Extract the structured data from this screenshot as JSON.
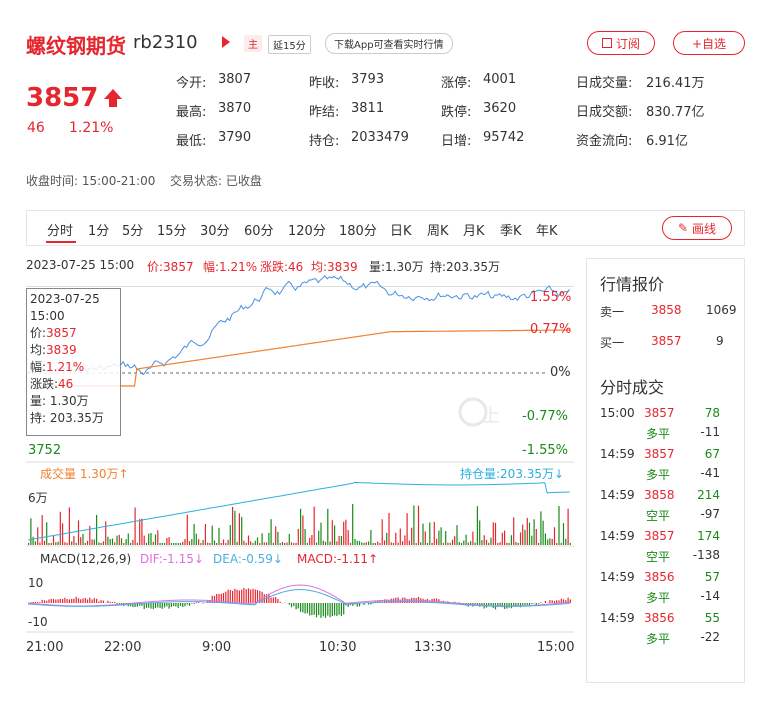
{
  "header": {
    "title": "螺纹钢期货",
    "code": "rb2310",
    "tag_main": "主",
    "tag_delay": "延15分",
    "download_label": "下载App可查看实时行情",
    "subscribe_label": "订阅",
    "add_fav_label": "+自选"
  },
  "quote": {
    "price": "3857",
    "change": "46",
    "change_pct": "1.21%"
  },
  "stats": {
    "open_label": "今开:",
    "open": "3807",
    "high_label": "最高:",
    "high": "3870",
    "low_label": "最低:",
    "low": "3790",
    "prev_close_label": "昨收:",
    "prev_close": "3793",
    "prev_settle_label": "昨结:",
    "prev_settle": "3811",
    "oi_label": "持仓:",
    "oi": "2033479",
    "limit_up_label": "涨停:",
    "limit_up": "4001",
    "limit_down_label": "跌停:",
    "limit_down": "3620",
    "daily_inc_label": "日增:",
    "daily_inc": "95742",
    "vol_label": "日成交量:",
    "vol": "216.41万",
    "amount_label": "日成交额:",
    "amount": "830.77亿",
    "flow_label": "资金流向:",
    "flow": "6.91亿"
  },
  "meta": {
    "close_time": "收盘时间:  15:00-21:00",
    "trade_state": "交易状态:  已收盘"
  },
  "tabs": [
    "分时",
    "1分",
    "5分",
    "15分",
    "30分",
    "60分",
    "120分",
    "180分",
    "日K",
    "周K",
    "月K",
    "季K",
    "年K"
  ],
  "draw_label": "画线",
  "infobar": {
    "datetime": "2023-07-25 15:00",
    "price": "价:3857",
    "pct": "幅:1.21%",
    "chg": "涨跌:46",
    "avg": "均:3839",
    "vol": "量:1.30万",
    "oi": "持:203.35万"
  },
  "tooltip": {
    "date": "2023-07-25",
    "time": "15:00",
    "price_label": "价:",
    "price": "3857",
    "avg_label": "均:",
    "avg": "3839",
    "pct_label": "幅:",
    "pct": "1.21%",
    "chg_label": "涨跌:",
    "chg": "46",
    "vol": "量: 1.30万",
    "oi": "持: 203.35万"
  },
  "chart_axes": {
    "pct_top": "1.55%",
    "pct_mid": "0.77%",
    "pct_zero": "0%",
    "pct_neg1": "-0.77%",
    "pct_neg2": "-1.55%",
    "price_low": "3752",
    "vol_label": "成交量  1.30万↑",
    "oi_label": "持仓量:203.35万↓",
    "vol_max": "6万",
    "macd_label": "MACD(12,26,9)",
    "dif": "DIF:-1.15↓",
    "dea": "DEA:-0.59↓",
    "macd": "MACD:-1.11↑",
    "macd_hi": "10",
    "macd_lo": "-10",
    "x_ticks": [
      "21:00",
      "22:00",
      "9:00",
      "10:30",
      "13:30",
      "15:00"
    ]
  },
  "watermark": "上",
  "side": {
    "quote_title": "行情报价",
    "ask_label": "卖一",
    "ask_price": "3858",
    "ask_vol": "1069",
    "bid_label": "买一",
    "bid_price": "3857",
    "bid_vol": "9",
    "trades_title": "分时成交",
    "trades": [
      {
        "time": "15:00",
        "price": "3857",
        "vol": "78",
        "type": "多平",
        "oi": "-11"
      },
      {
        "time": "14:59",
        "price": "3857",
        "vol": "67",
        "type": "多平",
        "oi": "-41"
      },
      {
        "time": "14:59",
        "price": "3858",
        "vol": "214",
        "type": "空平",
        "oi": "-97"
      },
      {
        "time": "14:59",
        "price": "3857",
        "vol": "174",
        "type": "空平",
        "oi": "-138"
      },
      {
        "time": "14:59",
        "price": "3856",
        "vol": "57",
        "type": "多平",
        "oi": "-14"
      },
      {
        "time": "14:59",
        "price": "3856",
        "vol": "55",
        "type": "多平",
        "oi": "-22"
      }
    ]
  },
  "colors": {
    "accent": "#e6262e",
    "green": "#1a8a1a",
    "price_line": "#4a90e2",
    "avg_line": "#f08030",
    "oi_line": "#2ab0e0"
  }
}
